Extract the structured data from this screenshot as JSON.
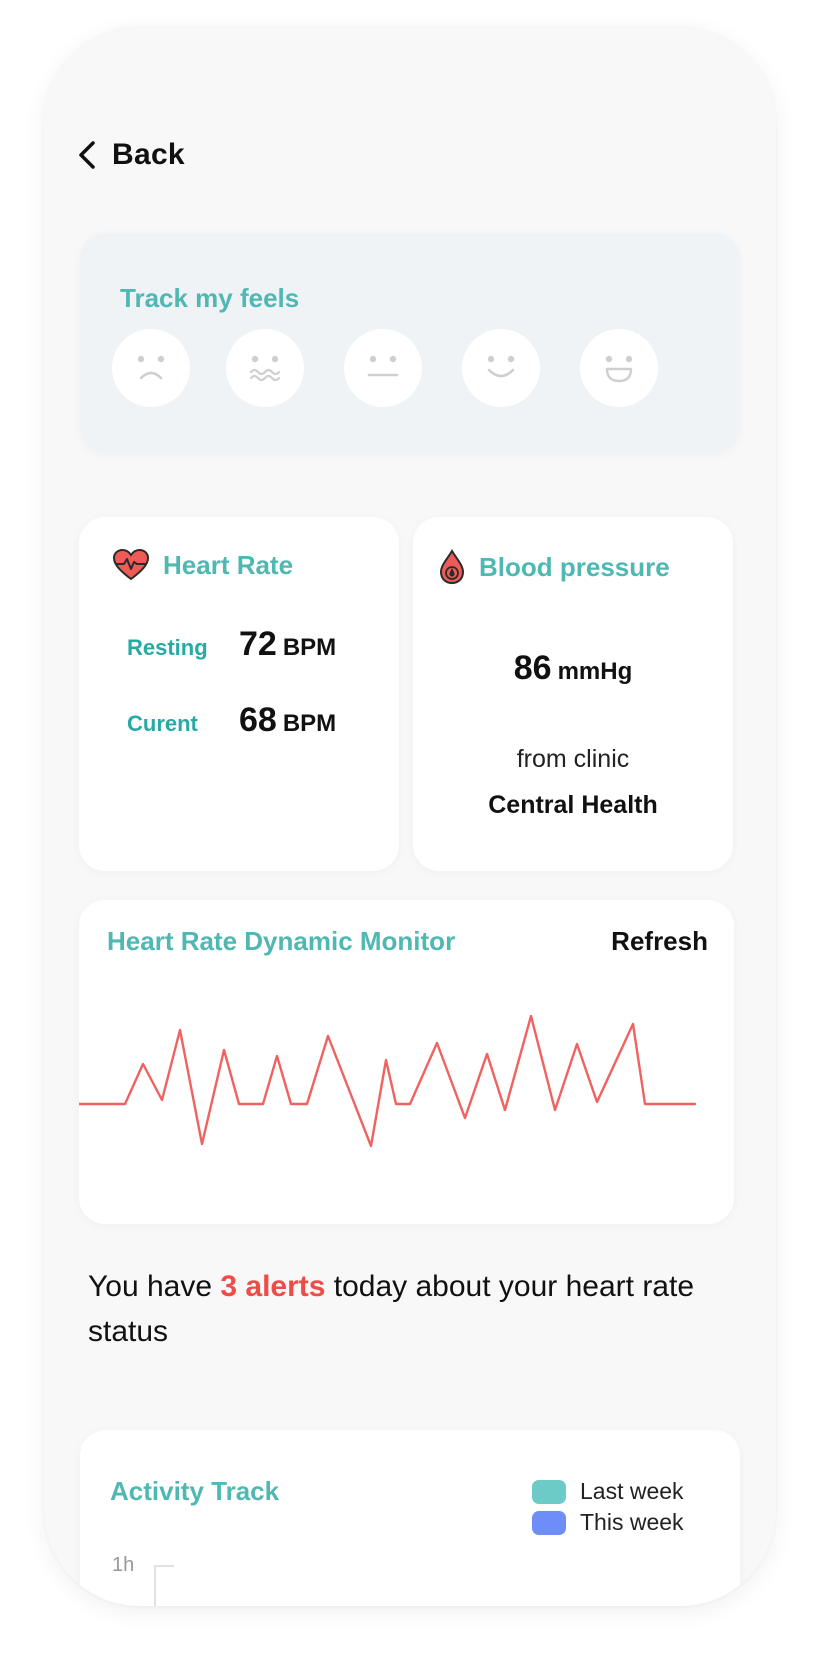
{
  "nav": {
    "back_label": "Back",
    "back_icon": "chevron-left-icon"
  },
  "feels": {
    "title": "Track my feels",
    "moods": [
      "very-sad",
      "worried",
      "neutral",
      "happy",
      "very-happy"
    ]
  },
  "heart_rate": {
    "title": "Heart Rate",
    "icon": "heart-pulse-icon",
    "resting_label": "Resting",
    "resting_value": "72",
    "current_label": "Curent",
    "current_value": "68",
    "unit": "BPM"
  },
  "blood_pressure": {
    "title": "Blood pressure",
    "icon": "blood-drop-icon",
    "value": "86",
    "unit": "mmHg",
    "from_label": "from clinic",
    "clinic": "Central Health"
  },
  "monitor": {
    "title": "Heart Rate Dynamic Monitor",
    "refresh_label": "Refresh",
    "line_color": "#f0625f"
  },
  "alerts": {
    "prefix": "You have ",
    "count_text": "3 alerts",
    "suffix": " today about your heart rate status"
  },
  "activity": {
    "title": "Activity Track",
    "legend": [
      {
        "label": "Last week",
        "color": "#6ccbc6"
      },
      {
        "label": "This week",
        "color": "#6f8df7"
      }
    ],
    "y_tick": "1h"
  },
  "colors": {
    "accent": "#4fb8b3",
    "alert": "#ef4b47"
  }
}
